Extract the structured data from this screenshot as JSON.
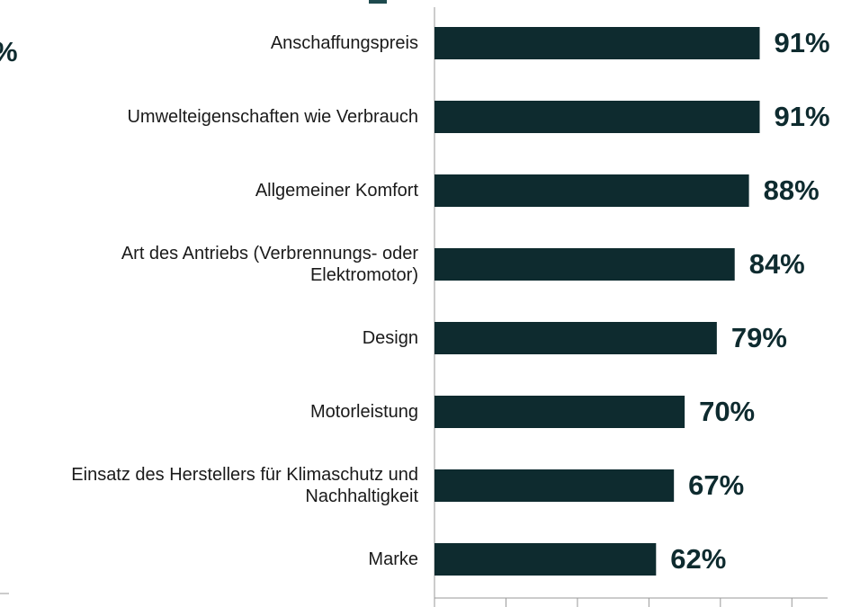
{
  "chart_data": {
    "type": "bar",
    "orientation": "horizontal",
    "annotations": [
      "%"
    ],
    "categories": [
      "Anschaffungspreis",
      "Umwelteigenschaften wie Verbrauch",
      "Allgemeiner Komfort",
      "Art des Antriebs (Verbrennungs- oder\nElektromotor)",
      "Design",
      "Motorleistung",
      "Einsatz des Herstellers für Klimaschutz und\nNachhaltigkeit",
      "Marke"
    ],
    "values": [
      91,
      91,
      88,
      84,
      79,
      70,
      67,
      62
    ],
    "value_labels": [
      "91%",
      "91%",
      "88%",
      "84%",
      "79%",
      "70%",
      "67%",
      "62%"
    ],
    "color": "#0e2b2f",
    "xlim": [
      0,
      110
    ],
    "xticks": [
      0,
      20,
      40,
      60,
      80,
      100
    ]
  }
}
